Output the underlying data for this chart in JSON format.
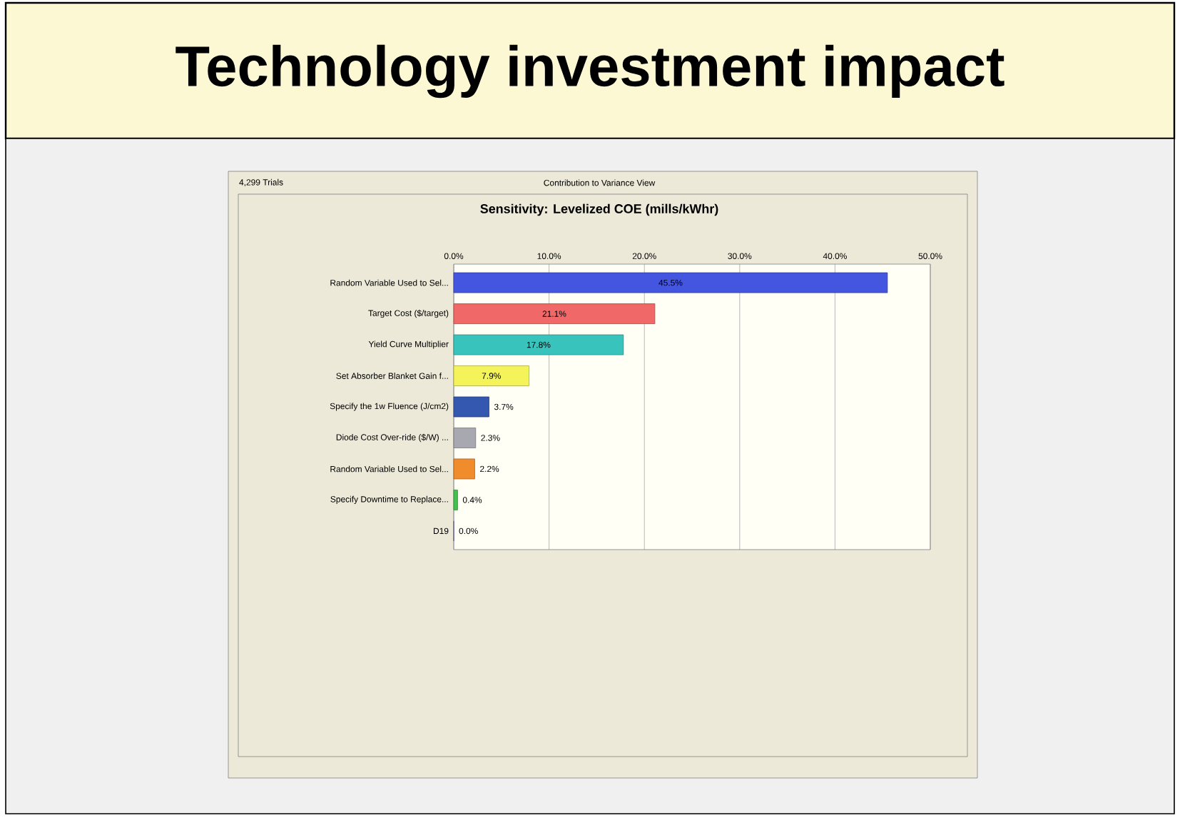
{
  "chart_data": {
    "type": "bar",
    "orientation": "horizontal",
    "title": "Technology investment impact",
    "subtitle": "Sensitivity: Levelized COE (mills/kWhr)",
    "annotations": [
      "4,299 Trials",
      "Contribution to Variance View"
    ],
    "categories": [
      "Random Variable Used to Sel...",
      "Target Cost ($/target)",
      "Yield Curve Multiplier",
      "Set Absorber Blanket Gain f...",
      "Specify the 1w Fluence (J/cm2)",
      "Diode Cost Over-ride ($/W) ...",
      "Random Variable Used to Sel...",
      "Specify Downtime to Replace...",
      "D19"
    ],
    "values": [
      45.5,
      21.1,
      17.8,
      7.9,
      3.7,
      2.3,
      2.2,
      0.4,
      0.0
    ],
    "value_labels": [
      "45.5%",
      "21.1%",
      "17.8%",
      "7.9%",
      "3.7%",
      "2.3%",
      "2.2%",
      "0.4%",
      "0.0%"
    ],
    "colors": [
      "#4455e0",
      "#f06868",
      "#38c4bc",
      "#f4f45a",
      "#3458b0",
      "#a8a8b0",
      "#f08c2c",
      "#44c050",
      "#8888d8"
    ],
    "xlim": [
      0,
      50
    ],
    "xticks": [
      {
        "value": 0,
        "label": "0.0%"
      },
      {
        "value": 10,
        "label": "10.0%"
      },
      {
        "value": 20,
        "label": "20.0%"
      },
      {
        "value": 30,
        "label": "30.0%"
      },
      {
        "value": 40,
        "label": "40.0%"
      },
      {
        "value": 50,
        "label": "50.0%"
      }
    ],
    "grid": "x"
  }
}
